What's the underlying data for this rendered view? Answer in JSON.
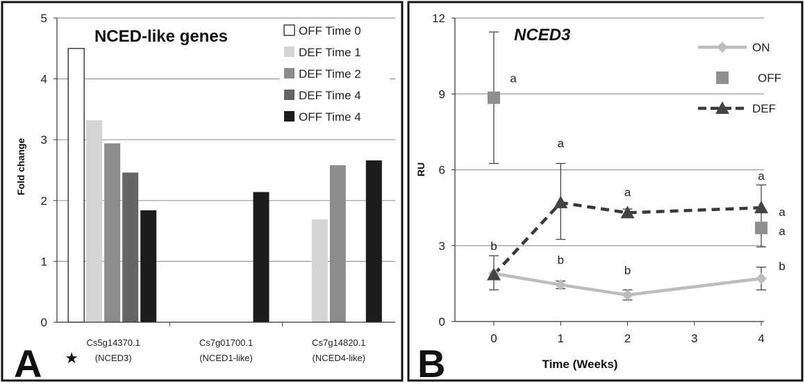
{
  "colors": {
    "off_time_0_fill": "#ffffff",
    "def_time_1": "#d4d4d4",
    "def_time_2": "#8c8c8c",
    "def_time_4": "#656565",
    "off_time_4": "#1c1c1c",
    "on_line": "#bdbdbd",
    "off_marker": "#8e8e8e",
    "def_line": "#3a3a3a"
  },
  "chart_data": [
    {
      "panel_letter": "A",
      "type": "bar",
      "title": "NCED-like genes",
      "ylabel": "Fold change",
      "ylim": [
        0,
        5
      ],
      "yticks": [
        0,
        1,
        2,
        3,
        4,
        5
      ],
      "categories": [
        {
          "gene": "Cs5g14370.1",
          "note": "(NCED3)",
          "starred": true
        },
        {
          "gene": "Cs7g01700.1",
          "note": "(NCED1-like)",
          "starred": false
        },
        {
          "gene": "Cs7g14820.1",
          "note": "(NCED4-like)",
          "starred": false
        }
      ],
      "series": [
        {
          "name": "OFF Time 0",
          "values": [
            4.5,
            null,
            null
          ]
        },
        {
          "name": "DEF Time 1",
          "values": [
            3.32,
            null,
            1.69
          ]
        },
        {
          "name": "DEF Time 2",
          "values": [
            2.94,
            null,
            2.58
          ]
        },
        {
          "name": "DEF Time 4",
          "values": [
            2.46,
            null,
            null
          ]
        },
        {
          "name": "OFF Time 4",
          "values": [
            1.84,
            2.14,
            2.66
          ]
        }
      ],
      "legend_position": "top-right",
      "star_symbol": "★"
    },
    {
      "panel_letter": "B",
      "type": "line",
      "title": "NCED3",
      "xlabel": "Time (Weeks)",
      "ylabel": "RU",
      "ylim": [
        0,
        12
      ],
      "yticks": [
        0,
        3,
        6,
        9,
        12
      ],
      "xticks": [
        0,
        1,
        2,
        3,
        4
      ],
      "legend_position": "top-right",
      "series": [
        {
          "name": "ON",
          "marker": "diamond",
          "line": "solid",
          "points": [
            {
              "x": 0,
              "y": 1.9,
              "err_low": 1.25,
              "err_high": 2.6,
              "label": "b"
            },
            {
              "x": 1,
              "y": 1.45,
              "err_low": 1.3,
              "err_high": 1.6,
              "label": "b"
            },
            {
              "x": 2,
              "y": 1.05,
              "err_low": 0.85,
              "err_high": 1.25,
              "label": "b"
            },
            {
              "x": 4,
              "y": 1.7,
              "err_low": 1.25,
              "err_high": 2.15,
              "label": "b"
            }
          ]
        },
        {
          "name": "OFF",
          "marker": "square",
          "line": "none",
          "points": [
            {
              "x": 0,
              "y": 8.85,
              "err_low": 6.25,
              "err_high": 11.45,
              "label": "a"
            },
            {
              "x": 4,
              "y": 3.7,
              "err_low": null,
              "err_high": null,
              "label": "a"
            }
          ]
        },
        {
          "name": "DEF",
          "marker": "triangle",
          "line": "dashed",
          "points": [
            {
              "x": 0,
              "y": 1.85,
              "err_low": null,
              "err_high": null,
              "label": ""
            },
            {
              "x": 1,
              "y": 4.7,
              "err_low": 3.25,
              "err_high": 6.25,
              "label": "a"
            },
            {
              "x": 2,
              "y": 4.3,
              "err_low": 4.15,
              "err_high": 4.45,
              "label": "a"
            },
            {
              "x": 4,
              "y": 4.5,
              "err_low": 2.95,
              "err_high": 5.4,
              "label": "a"
            }
          ]
        }
      ]
    }
  ]
}
